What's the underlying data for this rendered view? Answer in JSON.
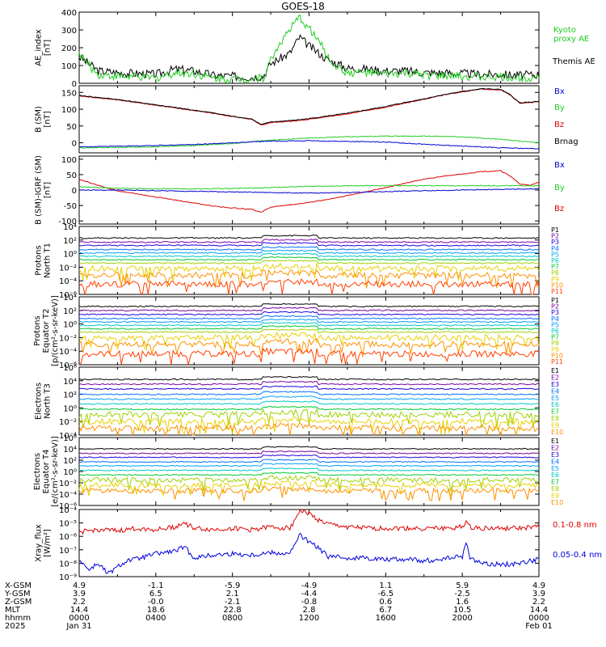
{
  "title": "GOES-18",
  "colors": {
    "ae_kyoto": "#22cc22",
    "ae_themis": "#000000",
    "bx": "#0000cc",
    "by": "#22cc22",
    "bz": "#dd0000",
    "bmag": "#000000",
    "xray_long": "#dd0000",
    "xray_short": "#0000dd"
  },
  "channel_colors": [
    "#000000",
    "#7b00a0",
    "#2200dd",
    "#0070ff",
    "#00a0ff",
    "#00c8c8",
    "#00c830",
    "#a0d000",
    "#e8d000",
    "#ff9000",
    "#ff4000",
    "#c80000"
  ],
  "chart_data": [
    {
      "type": "line",
      "ylabel": "AE_index\n[nT]",
      "ylim": [
        0,
        400
      ],
      "yticks": [
        "0",
        "100",
        "200",
        "300",
        "400"
      ],
      "log": false,
      "legend": [
        {
          "label": "Kyoto\nproxy AE",
          "color": "#22cc22"
        },
        {
          "label": "Themis AE",
          "color": "#000000"
        }
      ],
      "series": [
        {
          "name": "Themis AE",
          "color": "#000000",
          "x": [
            0,
            0.5,
            1,
            2,
            3,
            4,
            5,
            6,
            7,
            8,
            9,
            9.6,
            10,
            10.5,
            11,
            11.5,
            12,
            12.5,
            13,
            13.5,
            14,
            15,
            16,
            17,
            18,
            19,
            20,
            21,
            22,
            23,
            24
          ],
          "values": [
            150,
            110,
            70,
            60,
            55,
            50,
            80,
            70,
            45,
            40,
            35,
            40,
            110,
            140,
            170,
            260,
            210,
            170,
            130,
            110,
            85,
            80,
            70,
            70,
            60,
            60,
            55,
            50,
            50,
            45,
            50
          ]
        },
        {
          "name": "Kyoto proxy AE",
          "color": "#22cc22",
          "x": [
            0,
            0.5,
            1,
            2,
            3,
            4,
            5,
            6,
            7,
            8,
            9,
            9.6,
            10,
            10.5,
            11,
            11.5,
            12,
            12.5,
            13,
            13.5,
            14,
            15,
            16,
            17,
            18,
            19,
            20,
            21,
            22,
            23,
            24
          ],
          "values": [
            170,
            100,
            50,
            40,
            35,
            30,
            60,
            55,
            30,
            25,
            25,
            30,
            130,
            230,
            300,
            370,
            310,
            240,
            140,
            90,
            60,
            60,
            50,
            55,
            45,
            40,
            40,
            35,
            35,
            30,
            40
          ]
        }
      ]
    },
    {
      "type": "line",
      "ylabel": "B (SM)\n[nT]",
      "ylim": [
        -30,
        170
      ],
      "yticks": [
        "0",
        "50",
        "100",
        "150"
      ],
      "log": false,
      "legend": [
        {
          "label": "Bx",
          "color": "#0000cc"
        },
        {
          "label": "By",
          "color": "#22cc22"
        },
        {
          "label": "Bz",
          "color": "#dd0000"
        },
        {
          "label": "Brnag",
          "color": "#000000"
        }
      ],
      "series": [
        {
          "name": "Bz",
          "color": "#dd0000",
          "x": [
            0,
            1,
            2,
            3,
            4,
            5,
            6,
            7,
            8,
            9,
            9.5,
            10,
            11,
            12,
            13,
            14,
            15,
            16,
            17,
            18,
            19,
            20,
            21,
            22,
            22.5,
            23,
            24
          ],
          "values": [
            140,
            134,
            128,
            120,
            112,
            104,
            96,
            88,
            78,
            70,
            52,
            60,
            64,
            70,
            78,
            86,
            96,
            106,
            118,
            130,
            142,
            152,
            160,
            158,
            142,
            118,
            122
          ]
        },
        {
          "name": "Brnag",
          "color": "#000000",
          "x": [
            0,
            1,
            2,
            3,
            4,
            5,
            6,
            7,
            8,
            9,
            9.5,
            10,
            11,
            12,
            13,
            14,
            15,
            16,
            17,
            18,
            19,
            20,
            21,
            22,
            22.5,
            23,
            24
          ],
          "values": [
            141,
            135,
            129,
            121,
            113,
            105,
            97,
            89,
            79,
            71,
            54,
            62,
            66,
            72,
            80,
            88,
            98,
            108,
            120,
            131,
            143,
            153,
            161,
            159,
            143,
            119,
            123
          ]
        },
        {
          "name": "By",
          "color": "#22cc22",
          "x": [
            0,
            2,
            4,
            6,
            8,
            10,
            12,
            14,
            16,
            18,
            20,
            22,
            24
          ],
          "values": [
            -15,
            -14,
            -12,
            -8,
            -2,
            8,
            14,
            18,
            20,
            20,
            18,
            10,
            0
          ]
        },
        {
          "name": "Bx",
          "color": "#0000cc",
          "x": [
            0,
            2,
            4,
            6,
            8,
            10,
            12,
            14,
            16,
            18,
            20,
            22,
            24
          ],
          "values": [
            -12,
            -10,
            -8,
            -5,
            0,
            5,
            6,
            4,
            2,
            -4,
            -10,
            -15,
            -18
          ]
        }
      ]
    },
    {
      "type": "line",
      "ylabel": "B (SM)-IGRF (SM)\n[nT]",
      "ylim": [
        -110,
        110
      ],
      "yticks": [
        "-100",
        "-50",
        "0",
        "50",
        "100"
      ],
      "log": false,
      "legend": [
        {
          "label": "Bx",
          "color": "#0000cc"
        },
        {
          "label": "By",
          "color": "#22cc22"
        },
        {
          "label": "Bz",
          "color": "#dd0000"
        }
      ],
      "series": [
        {
          "name": "Bz",
          "color": "#dd0000",
          "x": [
            0,
            1,
            2,
            3,
            4,
            5,
            6,
            7,
            8,
            9,
            9.5,
            10,
            11,
            12,
            13,
            14,
            15,
            16,
            17,
            18,
            19,
            20,
            21,
            22,
            22.5,
            23,
            23.5,
            24
          ],
          "values": [
            35,
            15,
            -2,
            -12,
            -22,
            -32,
            -42,
            -52,
            -58,
            -62,
            -72,
            -55,
            -48,
            -40,
            -30,
            -18,
            -5,
            8,
            22,
            35,
            45,
            52,
            60,
            62,
            45,
            20,
            15,
            25
          ]
        },
        {
          "name": "By",
          "color": "#22cc22",
          "x": [
            0,
            2,
            4,
            6,
            8,
            10,
            12,
            14,
            16,
            18,
            20,
            22,
            24
          ],
          "values": [
            10,
            6,
            4,
            4,
            5,
            8,
            12,
            14,
            14,
            14,
            14,
            14,
            14
          ]
        },
        {
          "name": "Bx",
          "color": "#0000cc",
          "x": [
            0,
            2,
            4,
            6,
            8,
            10,
            12,
            14,
            16,
            18,
            20,
            22,
            24
          ],
          "values": [
            0,
            0,
            -2,
            -4,
            -6,
            -8,
            -10,
            -8,
            -5,
            -2,
            0,
            2,
            4
          ]
        }
      ]
    },
    {
      "type": "line",
      "ylabel": "Protons\nNorth T1",
      "ylim": [
        -6,
        4
      ],
      "log": true,
      "yticks": [
        "10⁴",
        "10²",
        "10⁰",
        "10⁻²",
        "10⁻⁴",
        "10⁻⁶"
      ],
      "channels": [
        "P1",
        "P2",
        "P3",
        "P4",
        "P5",
        "P6",
        "P7",
        "P8",
        "P9",
        "P10",
        "P11"
      ],
      "levels": [
        2.3,
        1.7,
        1.2,
        0.6,
        0.1,
        -0.4,
        -0.9,
        -1.4,
        -2.2,
        -3.2,
        -4.5
      ]
    },
    {
      "type": "line",
      "ylabel": "Protons\nEquator T2\n[p/(cm²-s-sr-keV)]",
      "ylim": [
        -6,
        4
      ],
      "log": true,
      "yticks": [
        "10⁴",
        "10²",
        "10⁰",
        "10⁻²",
        "10⁻⁴",
        "10⁻⁶"
      ],
      "channels": [
        "P1",
        "P2",
        "P3",
        "P4",
        "P5",
        "P6",
        "P7",
        "P8",
        "P9",
        "P10",
        "P11"
      ],
      "levels": [
        2.6,
        2.0,
        1.4,
        0.8,
        0.3,
        -0.2,
        -0.7,
        -1.2,
        -2.0,
        -3.0,
        -4.4
      ]
    },
    {
      "type": "line",
      "ylabel": "Electrons\nNorth T3",
      "ylim": [
        -4,
        6
      ],
      "log": true,
      "yticks": [
        "10⁶",
        "10⁴",
        "10²",
        "10⁰",
        "10⁻²",
        "10⁻⁴"
      ],
      "channels": [
        "E1",
        "E2",
        "E3",
        "E4",
        "E5",
        "E6",
        "E7",
        "E8",
        "E9",
        "E10"
      ],
      "levels": [
        4.2,
        3.5,
        2.8,
        2.0,
        1.3,
        0.6,
        -0.2,
        -1.0,
        -2.0,
        -3.0
      ]
    },
    {
      "type": "line",
      "ylabel": "Electrons\nEquator T4\n[e/(cm²-s-sr-keV)]",
      "ylim": [
        -6,
        6
      ],
      "log": true,
      "yticks": [
        "10⁶",
        "10⁴",
        "10²",
        "10⁰",
        "10⁻²",
        "10⁻⁴",
        "10⁻⁶"
      ],
      "channels": [
        "E1",
        "E2",
        "E3",
        "E4",
        "E5",
        "E6",
        "E7",
        "E8",
        "E9",
        "E10"
      ],
      "levels": [
        4.0,
        3.2,
        2.5,
        1.7,
        1.0,
        0.2,
        -0.6,
        -1.5,
        -2.4,
        -3.4
      ]
    },
    {
      "type": "line",
      "ylabel": "Xray_flux\n[W/m²]",
      "ylim": [
        -9,
        -4
      ],
      "log": true,
      "yticks": [
        "10⁻⁴",
        "10⁻⁵",
        "10⁻⁶",
        "10⁻⁷",
        "10⁻⁸",
        "10⁻⁹"
      ],
      "legend": [
        {
          "label": "0.1-0.8 nm",
          "color": "#dd0000"
        },
        {
          "label": "0.05-0.4 nm",
          "color": "#0000dd"
        }
      ],
      "series": [
        {
          "name": "0.1-0.8 nm",
          "color": "#dd0000",
          "x": [
            0,
            1,
            2,
            3,
            4,
            5,
            5.5,
            6,
            7,
            8,
            9,
            10,
            11,
            11.5,
            12,
            12.5,
            13,
            14,
            15,
            16,
            17,
            18,
            19,
            20,
            20.2,
            20.4,
            21,
            22,
            23,
            24
          ],
          "values": [
            -5.7,
            -5.5,
            -5.6,
            -5.4,
            -5.5,
            -5.3,
            -5.0,
            -5.4,
            -5.5,
            -5.4,
            -5.5,
            -5.3,
            -5.4,
            -4.1,
            -4.3,
            -4.8,
            -5.1,
            -5.3,
            -5.4,
            -5.4,
            -5.4,
            -5.4,
            -5.4,
            -5.3,
            -4.9,
            -5.3,
            -5.4,
            -5.4,
            -5.4,
            -5.3
          ]
        },
        {
          "name": "0.05-0.4 nm",
          "color": "#0000dd",
          "x": [
            0,
            0.5,
            1,
            1.5,
            2,
            2.5,
            3,
            4,
            5,
            5.5,
            6,
            7,
            8,
            9,
            10,
            11,
            11.5,
            12,
            12.5,
            13,
            14,
            15,
            16,
            17,
            18,
            19,
            20,
            20.2,
            20.4,
            21,
            22,
            23,
            24
          ],
          "values": [
            -7.7,
            -8.5,
            -8.0,
            -8.8,
            -8.3,
            -7.8,
            -7.7,
            -7.3,
            -7.1,
            -6.8,
            -7.6,
            -7.4,
            -7.3,
            -7.4,
            -7.2,
            -7.3,
            -5.9,
            -6.4,
            -6.9,
            -7.5,
            -7.6,
            -7.6,
            -7.7,
            -7.7,
            -7.8,
            -7.7,
            -7.5,
            -6.5,
            -7.6,
            -8.0,
            -8.1,
            -8.0,
            -7.7
          ]
        }
      ]
    }
  ],
  "xaxis": {
    "row_labels": [
      "X-GSM",
      "Y-GSM",
      "Z-GSM",
      "MLT",
      "hhmm",
      "2025"
    ],
    "columns": [
      {
        "hour": 0,
        "vals": [
          "4.9",
          "3.9",
          "2.2",
          "14.4",
          "0000",
          "Jan 31"
        ]
      },
      {
        "hour": 4,
        "vals": [
          "-1.1",
          "6.5",
          "-0.0",
          "18.6",
          "0400",
          ""
        ]
      },
      {
        "hour": 8,
        "vals": [
          "-5.9",
          "2.1",
          "-2.1",
          "22.8",
          "0800",
          ""
        ]
      },
      {
        "hour": 12,
        "vals": [
          "-4.9",
          "-4.4",
          "-0.8",
          "2.8",
          "1200",
          ""
        ]
      },
      {
        "hour": 16,
        "vals": [
          "1.1",
          "-6.5",
          "0.6",
          "6.7",
          "1600",
          ""
        ]
      },
      {
        "hour": 20,
        "vals": [
          "5.9",
          "-2.5",
          "1.6",
          "10.5",
          "2000",
          ""
        ]
      },
      {
        "hour": 24,
        "vals": [
          "4.9",
          "3.9",
          "2.2",
          "14.4",
          "0000",
          "Feb 01"
        ]
      }
    ]
  }
}
